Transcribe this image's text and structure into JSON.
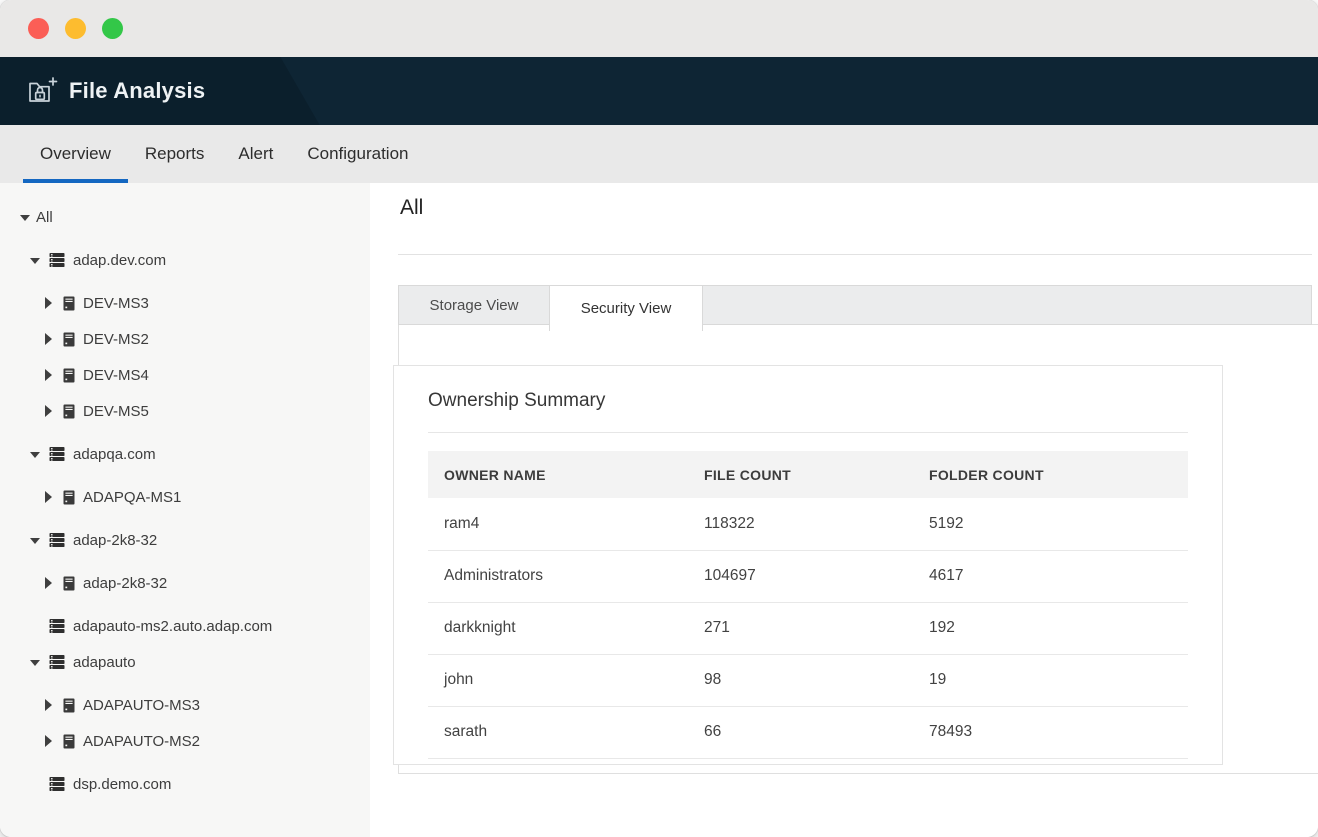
{
  "window": {
    "controls": [
      {
        "name": "close",
        "color": "#fb5e56"
      },
      {
        "name": "minimize",
        "color": "#fdbc2f"
      },
      {
        "name": "zoom",
        "color": "#33c748"
      }
    ]
  },
  "app_header": {
    "title": "File Analysis",
    "icon": "folder-lock-add-icon",
    "background": "#0b1f2c"
  },
  "nav": {
    "tabs": [
      {
        "label": "Overview",
        "active": true
      },
      {
        "label": "Reports",
        "active": false
      },
      {
        "label": "Alert",
        "active": false
      },
      {
        "label": "Configuration",
        "active": false
      }
    ],
    "active_underline_color": "#1467c1"
  },
  "sidebar": {
    "tree": [
      {
        "label": "All",
        "level": 0,
        "caret": "down",
        "icon": null
      },
      {
        "label": "adap.dev.com",
        "level": 1,
        "caret": "down",
        "icon": "domain"
      },
      {
        "label": "DEV-MS3",
        "level": 2,
        "caret": "right",
        "icon": "machine"
      },
      {
        "label": "DEV-MS2",
        "level": 2,
        "caret": "right",
        "icon": "machine"
      },
      {
        "label": "DEV-MS4",
        "level": 2,
        "caret": "right",
        "icon": "machine"
      },
      {
        "label": "DEV-MS5",
        "level": 2,
        "caret": "right",
        "icon": "machine"
      },
      {
        "label": "adapqa.com",
        "level": 1,
        "caret": "down",
        "icon": "domain"
      },
      {
        "label": "ADAPQA-MS1",
        "level": 2,
        "caret": "right",
        "icon": "machine"
      },
      {
        "label": "adap-2k8-32",
        "level": 1,
        "caret": "down",
        "icon": "domain"
      },
      {
        "label": "adap-2k8-32",
        "level": 2,
        "caret": "right",
        "icon": "machine"
      },
      {
        "label": "adapauto-ms2.auto.adap.com",
        "level": 1,
        "caret": null,
        "icon": "domain"
      },
      {
        "label": "adapauto",
        "level": 1,
        "caret": "down",
        "icon": "domain"
      },
      {
        "label": "ADAPAUTO-MS3",
        "level": 2,
        "caret": "right",
        "icon": "machine"
      },
      {
        "label": "ADAPAUTO-MS2",
        "level": 2,
        "caret": "right",
        "icon": "machine"
      },
      {
        "label": "dsp.demo.com",
        "level": 1,
        "caret": null,
        "icon": "domain"
      }
    ]
  },
  "main": {
    "heading": "All",
    "view_tabs": [
      {
        "label": "Storage View",
        "active": false
      },
      {
        "label": "Security View",
        "active": true
      }
    ],
    "card": {
      "title": "Ownership Summary",
      "table": {
        "columns": [
          "OWNER NAME",
          "FILE COUNT",
          "FOLDER COUNT"
        ],
        "rows": [
          {
            "owner": "ram4",
            "file_count": "118322",
            "folder_count": "5192"
          },
          {
            "owner": "Administrators",
            "file_count": "104697",
            "folder_count": "4617"
          },
          {
            "owner": "darkknight",
            "file_count": "271",
            "folder_count": "192"
          },
          {
            "owner": "john",
            "file_count": "98",
            "folder_count": "19"
          },
          {
            "owner": "sarath",
            "file_count": "66",
            "folder_count": "78493"
          }
        ]
      }
    }
  },
  "colors": {
    "accent_blue": "#1467c1",
    "header_bg": "#0b1f2c",
    "chrome_bg": "#e9e8e7",
    "nav_bg": "#e9e9e9",
    "sidebar_bg": "#f7f7f6",
    "strip_bg": "#ebeced"
  }
}
